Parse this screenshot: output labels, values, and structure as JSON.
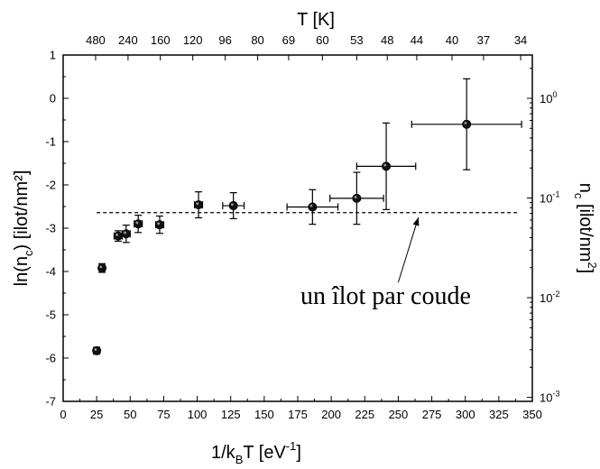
{
  "chart_data": {
    "type": "scatter",
    "xlabel": "1/kBT [eV-1]",
    "xlabel_main": "1/k",
    "xlabel_sub": "B",
    "xlabel_rest": "T [eV",
    "xlabel_sup": "-1",
    "xlabel_close": "]",
    "ylabel": "ln(nc) [ilot/nm²]",
    "ylabel_main": "ln(n",
    "ylabel_sub": "c",
    "ylabel_rest": ") [ilot/nm²]",
    "top_label": "T [K]",
    "right_label": "nc [ilot/nm2]",
    "right_label_main": "n",
    "right_label_sub": "c",
    "right_label_rest": " [ilot/nm",
    "right_label_sup": "2",
    "right_label_close": "]",
    "xlim": [
      0,
      350
    ],
    "ylim": [
      -7,
      1
    ],
    "x_ticks": [
      0,
      25,
      50,
      75,
      100,
      125,
      150,
      175,
      200,
      225,
      250,
      275,
      300,
      325,
      350
    ],
    "x_tick_labels": [
      "0",
      "25",
      "50",
      "75",
      "100",
      "125",
      "150",
      "175",
      "200",
      "225",
      "250",
      "275",
      "300",
      "325",
      "350"
    ],
    "y_ticks": [
      -7,
      -6,
      -5,
      -4,
      -3,
      -2,
      -1,
      0,
      1
    ],
    "y_tick_labels": [
      "-7",
      "-6",
      "-5",
      "-4",
      "-3",
      "-2",
      "-1",
      "0",
      "1"
    ],
    "top_ticks": [
      {
        "x": 24.2,
        "label": "480"
      },
      {
        "x": 48.4,
        "label": "240"
      },
      {
        "x": 72.5,
        "label": "160"
      },
      {
        "x": 96.7,
        "label": "120"
      },
      {
        "x": 120.9,
        "label": "96"
      },
      {
        "x": 145.1,
        "label": "80"
      },
      {
        "x": 168.2,
        "label": "69"
      },
      {
        "x": 193.4,
        "label": "60"
      },
      {
        "x": 219.0,
        "label": "53"
      },
      {
        "x": 241.8,
        "label": "48"
      },
      {
        "x": 263.8,
        "label": "44"
      },
      {
        "x": 290.1,
        "label": "40"
      },
      {
        "x": 313.6,
        "label": "37"
      },
      {
        "x": 341.3,
        "label": "34"
      }
    ],
    "right_ticks": [
      {
        "y": 0,
        "base": "10",
        "exp": "0"
      },
      {
        "y": -2.3026,
        "base": "10",
        "exp": "-1"
      },
      {
        "y": -4.6052,
        "base": "10",
        "exp": "-2"
      },
      {
        "y": -6.9078,
        "base": "10",
        "exp": "-3"
      }
    ],
    "points": [
      {
        "x": 25,
        "y": -5.83,
        "xerr": 2,
        "yerr": 0.08
      },
      {
        "x": 29,
        "y": -3.92,
        "xerr": 2,
        "yerr": 0.1
      },
      {
        "x": 41,
        "y": -3.18,
        "xerr": 3,
        "yerr": 0.12
      },
      {
        "x": 47,
        "y": -3.13,
        "xerr": 3,
        "yerr": 0.2
      },
      {
        "x": 56,
        "y": -2.9,
        "xerr": 3,
        "yerr": 0.2
      },
      {
        "x": 72,
        "y": -2.92,
        "xerr": 3,
        "yerr": 0.2
      },
      {
        "x": 101,
        "y": -2.46,
        "xerr": 3,
        "yerr": 0.3
      },
      {
        "x": 127,
        "y": -2.48,
        "xerr": 8,
        "yerr": 0.3
      },
      {
        "x": 186,
        "y": -2.51,
        "xerr": 19,
        "yerr": 0.4
      },
      {
        "x": 219,
        "y": -2.31,
        "xerr": 20,
        "yerr": 0.6
      },
      {
        "x": 241,
        "y": -1.57,
        "xerr": 22,
        "yerr": 1.0
      },
      {
        "x": 301,
        "y": -0.6,
        "xerr": 41,
        "yerr": 1.05
      }
    ],
    "reference_line": {
      "x_start": 25,
      "x_end": 339,
      "y": -2.64,
      "style": "dashed"
    },
    "annotation": {
      "text": "un îlot par coude",
      "arrow_from": [
        250,
        -4.25
      ],
      "arrow_to": [
        265,
        -2.75
      ]
    },
    "grid": false,
    "legend": "none"
  }
}
